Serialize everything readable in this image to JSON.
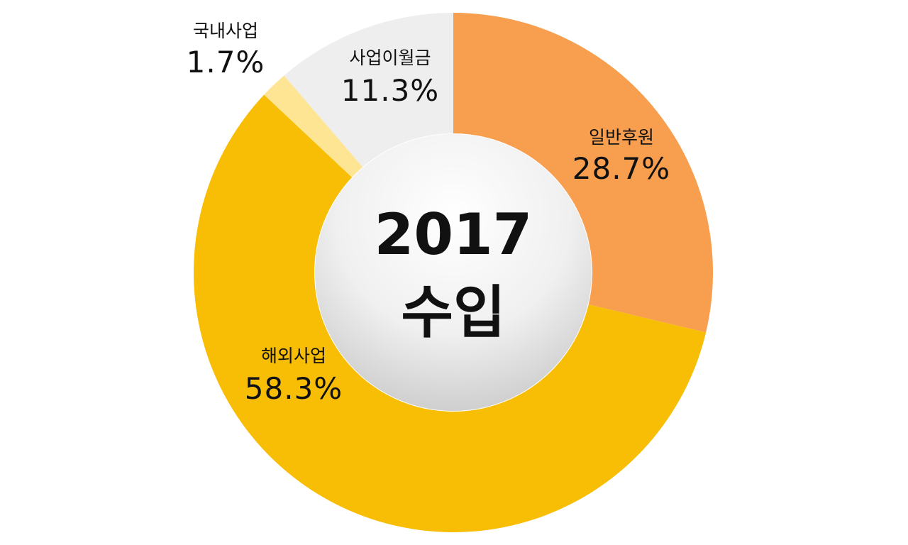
{
  "chart_data": {
    "type": "pie",
    "center_text": [
      "2017",
      "수입"
    ],
    "slices": [
      {
        "label": "일반후원",
        "value": 28.7,
        "value_text": "28.7%",
        "color": "#F79E4F"
      },
      {
        "label": "해외사업",
        "value": 58.3,
        "value_text": "58.3%",
        "color": "#F8BD05"
      },
      {
        "label": "국내사업",
        "value": 1.7,
        "value_text": "1.7%",
        "color": "#FDE594"
      },
      {
        "label": "사업이월금",
        "value": 11.3,
        "value_text": "11.3%",
        "color": "#EEEEEE"
      }
    ],
    "start": "12 o'clock",
    "direction": "clockwise"
  }
}
